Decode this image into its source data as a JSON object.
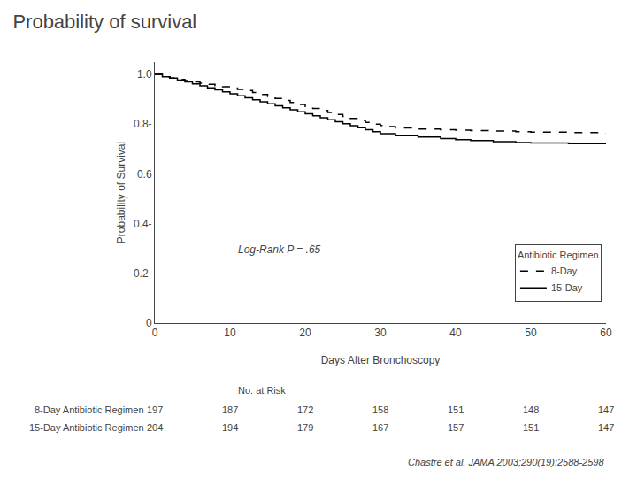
{
  "chart_data": {
    "type": "line",
    "title": "Probability of survival",
    "xlabel": "Days After Bronchoscopy",
    "ylabel": "Probability of Survival",
    "xlim": [
      0,
      60
    ],
    "ylim": [
      0,
      1.05
    ],
    "xticks": [
      0,
      10,
      20,
      30,
      40,
      50,
      60
    ],
    "yticks": [
      0,
      {
        "value": 0.2,
        "label": "0.2-"
      },
      {
        "value": 0.4,
        "label": "0.4-"
      },
      0.6,
      {
        "value": 0.8,
        "label": "0.8-"
      },
      {
        "value": 1.0,
        "label": "1.0"
      }
    ],
    "grid": false,
    "legend": "lower right",
    "legend_title": "Antibiotic Regimen",
    "series": [
      {
        "name": "8-Day",
        "color": "#000000",
        "line_style": "dashed",
        "x": [
          0,
          1,
          2,
          3,
          4,
          5,
          6,
          7,
          8,
          9,
          10,
          11,
          12,
          13,
          14,
          15,
          16,
          17,
          18,
          19,
          20,
          21,
          22,
          23,
          24,
          25,
          26,
          27,
          28,
          29,
          30,
          31,
          32,
          35,
          38,
          40,
          42,
          45,
          48,
          50,
          55,
          60
        ],
        "values": [
          1.0,
          0.99,
          0.985,
          0.98,
          0.975,
          0.97,
          0.965,
          0.96,
          0.955,
          0.95,
          0.945,
          0.94,
          0.935,
          0.927,
          0.919,
          0.911,
          0.903,
          0.895,
          0.887,
          0.879,
          0.871,
          0.863,
          0.855,
          0.847,
          0.839,
          0.831,
          0.823,
          0.815,
          0.807,
          0.8,
          0.795,
          0.79,
          0.785,
          0.78,
          0.778,
          0.776,
          0.774,
          0.772,
          0.77,
          0.768,
          0.766,
          0.764
        ]
      },
      {
        "name": "15-Day",
        "color": "#000000",
        "line_style": "solid",
        "x": [
          0,
          1,
          2,
          3,
          4,
          5,
          6,
          7,
          8,
          9,
          10,
          11,
          12,
          13,
          14,
          15,
          16,
          17,
          18,
          19,
          20,
          21,
          22,
          23,
          24,
          25,
          26,
          27,
          28,
          29,
          30,
          32,
          35,
          38,
          40,
          42,
          45,
          48,
          50,
          55,
          60
        ],
        "values": [
          1.0,
          0.99,
          0.985,
          0.977,
          0.97,
          0.962,
          0.954,
          0.946,
          0.938,
          0.93,
          0.922,
          0.914,
          0.906,
          0.898,
          0.89,
          0.882,
          0.874,
          0.866,
          0.858,
          0.85,
          0.842,
          0.834,
          0.826,
          0.818,
          0.81,
          0.802,
          0.794,
          0.786,
          0.778,
          0.77,
          0.762,
          0.754,
          0.748,
          0.742,
          0.738,
          0.734,
          0.73,
          0.726,
          0.724,
          0.722,
          0.72
        ]
      }
    ],
    "annotations": [
      {
        "text": "Log-Rank P = .65"
      }
    ],
    "risk_table": {
      "title": "No. at Risk",
      "x": [
        0,
        10,
        20,
        30,
        40,
        50,
        60
      ],
      "rows": [
        {
          "name": "8-Day Antibiotic Regimen",
          "values": [
            197,
            187,
            172,
            158,
            151,
            148,
            147
          ]
        },
        {
          "name": "15-Day Antibiotic Regimen",
          "values": [
            204,
            194,
            179,
            167,
            157,
            151,
            147
          ]
        }
      ]
    },
    "source": "Chastre et al. JAMA 2003;290(19):2588-2598"
  }
}
